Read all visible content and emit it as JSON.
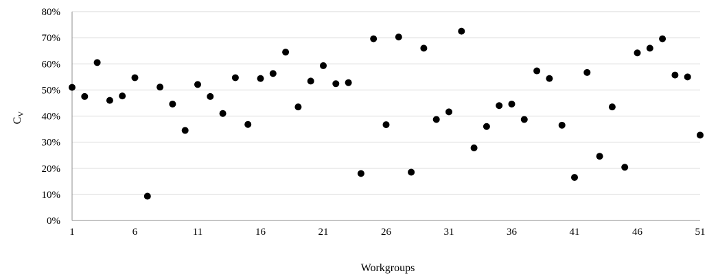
{
  "chart_data": {
    "type": "scatter",
    "xlabel": "Workgroups",
    "ylabel_main": "C",
    "ylabel_sub": "V",
    "xlim": [
      1,
      51
    ],
    "ylim": [
      0,
      0.8
    ],
    "x_ticks": [
      1,
      6,
      11,
      16,
      21,
      26,
      31,
      36,
      41,
      46,
      51
    ],
    "x_tick_labels": [
      "1",
      "6",
      "11",
      "16",
      "21",
      "26",
      "31",
      "36",
      "41",
      "46",
      "51"
    ],
    "y_ticks": [
      0,
      0.1,
      0.2,
      0.3,
      0.4,
      0.5,
      0.6,
      0.7,
      0.8
    ],
    "y_tick_labels": [
      "0%",
      "10%",
      "20%",
      "30%",
      "40%",
      "50%",
      "60%",
      "70%",
      "80%"
    ],
    "grid": "horizontal",
    "marker_color": "#000000",
    "grid_color": "#d9d9d9",
    "series": [
      {
        "x": [
          1,
          2,
          3,
          4,
          5,
          6,
          7,
          8,
          9,
          10,
          11,
          12,
          13,
          14,
          15,
          16,
          17,
          18,
          19,
          20,
          21,
          22,
          23,
          24,
          25,
          26,
          27,
          28,
          29,
          30,
          31,
          32,
          33,
          34,
          35,
          36,
          37,
          38,
          39,
          40,
          41,
          42,
          43,
          44,
          45,
          46,
          47,
          48,
          49,
          50,
          51
        ],
        "values": [
          0.51,
          0.475,
          0.605,
          0.46,
          0.477,
          0.547,
          0.093,
          0.511,
          0.446,
          0.345,
          0.521,
          0.475,
          0.41,
          0.547,
          0.368,
          0.544,
          0.563,
          0.645,
          0.435,
          0.534,
          0.593,
          0.524,
          0.528,
          0.18,
          0.696,
          0.367,
          0.703,
          0.185,
          0.66,
          0.387,
          0.416,
          0.725,
          0.278,
          0.36,
          0.44,
          0.446,
          0.387,
          0.573,
          0.544,
          0.365,
          0.165,
          0.567,
          0.246,
          0.435,
          0.204,
          0.642,
          0.66,
          0.696,
          0.557,
          0.55,
          0.327
        ]
      }
    ]
  }
}
